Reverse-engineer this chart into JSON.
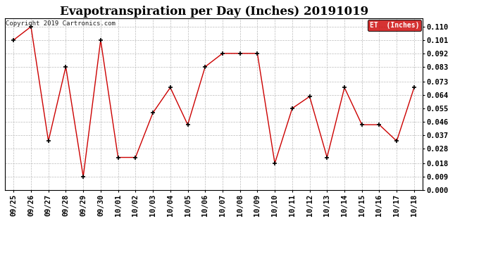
{
  "title": "Evapotranspiration per Day (Inches) 20191019",
  "copyright_text": "Copyright 2019 Cartronics.com",
  "legend_label": "ET  (Inches)",
  "legend_bg": "#cc0000",
  "legend_text_color": "#ffffff",
  "x_labels": [
    "09/25",
    "09/26",
    "09/27",
    "09/28",
    "09/29",
    "09/30",
    "10/01",
    "10/02",
    "10/03",
    "10/04",
    "10/05",
    "10/06",
    "10/07",
    "10/08",
    "10/09",
    "10/10",
    "10/11",
    "10/12",
    "10/13",
    "10/14",
    "10/15",
    "10/16",
    "10/17",
    "10/18"
  ],
  "y_values": [
    0.101,
    0.11,
    0.033,
    0.083,
    0.009,
    0.101,
    0.022,
    0.022,
    0.052,
    0.069,
    0.044,
    0.083,
    0.092,
    0.092,
    0.092,
    0.018,
    0.055,
    0.063,
    0.022,
    0.069,
    0.044,
    0.044,
    0.033,
    0.069
  ],
  "line_color": "#cc0000",
  "marker_color": "#000000",
  "ylim": [
    0.0,
    0.1155
  ],
  "yticks": [
    0.0,
    0.009,
    0.018,
    0.028,
    0.037,
    0.046,
    0.055,
    0.064,
    0.073,
    0.083,
    0.092,
    0.101,
    0.11
  ],
  "grid_color": "#bbbbbb",
  "bg_color": "#ffffff",
  "title_fontsize": 12,
  "tick_fontsize": 7.5,
  "copyright_fontsize": 6.5
}
